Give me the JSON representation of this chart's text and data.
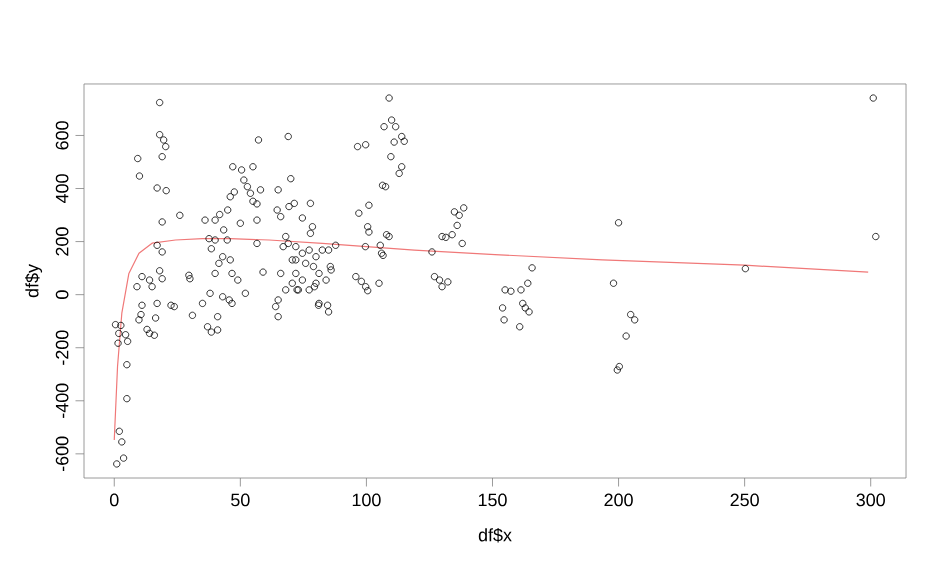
{
  "chart_data": {
    "type": "scatter",
    "xlabel": "df$x",
    "ylabel": "df$y",
    "xlim": [
      -12,
      314
    ],
    "ylim": [
      -691,
      794
    ],
    "xticks": [
      0,
      50,
      100,
      150,
      200,
      250,
      300
    ],
    "yticks": [
      -600,
      -400,
      -200,
      0,
      200,
      400,
      600
    ],
    "grid": false,
    "series": [
      {
        "color": "#000000",
        "marker": "circle",
        "x": [
          0.5,
          2.6,
          1.8,
          1.5,
          4.5,
          5.3,
          5,
          5,
          2,
          3,
          3.7,
          1,
          9.3,
          10,
          9,
          11,
          11,
          10.6,
          9.8,
          14,
          15,
          13,
          14,
          15.9,
          16.4,
          17,
          18,
          19,
          17,
          18,
          18,
          19.6,
          20.4,
          19,
          17,
          20.6,
          19,
          19,
          22.5,
          23.8,
          26,
          29.6,
          30,
          31,
          35,
          36,
          37.6,
          40,
          38.5,
          38,
          37,
          38.5,
          41,
          41,
          43,
          45.6,
          46.7,
          40,
          41.8,
          43.4,
          44.8,
          45,
          43,
          41.5,
          46,
          40,
          46.7,
          46,
          47.6,
          47,
          50.5,
          51.4,
          52.8,
          54,
          55,
          56.6,
          55,
          57.2,
          56.6,
          56.6,
          59,
          58,
          50,
          49,
          52,
          65,
          64,
          65,
          64.6,
          66,
          65,
          69,
          70,
          71.4,
          67,
          69,
          66,
          68,
          72,
          72.5,
          70.6,
          77.8,
          78.6,
          80,
          81,
          74.6,
          77.8,
          69.3,
          68,
          72,
          74.6,
          70.6,
          77.3,
          80,
          82.5,
          85,
          87.8,
          79,
          81.2,
          84,
          72,
          74.6,
          73,
          77.3,
          79.4,
          75.9,
          85.7,
          81.2,
          84.6,
          85,
          86,
          96.5,
          99.7,
          109,
          107,
          110,
          111.6,
          114,
          115,
          111,
          109.7,
          114,
          113,
          106.4,
          107.6,
          101,
          97,
          100.5,
          101,
          108,
          109,
          99.6,
          105.5,
          106,
          106.6,
          95.8,
          98,
          99.7,
          100.5,
          105,
          126,
          127,
          129,
          130,
          132.3,
          131.5,
          134,
          130,
          134.9,
          136.8,
          138.6,
          136,
          138,
          155,
          157.3,
          161.3,
          154,
          154.6,
          162,
          163,
          164.5,
          160.8,
          164,
          165.7,
          200,
          198,
          204.8,
          206.4,
          203,
          200.3,
          199.5,
          250.3,
          301,
          302
        ],
        "values": [
          -113,
          -116,
          -146,
          -183,
          -151,
          -176,
          -264,
          -392,
          -515,
          -555,
          -616,
          -638,
          513,
          447,
          30,
          68,
          -40,
          -75,
          -95,
          55,
          30,
          -131,
          -146,
          -153,
          -88,
          -33,
          90,
          60,
          186,
          724,
          603,
          583,
          558,
          520,
          402,
          392,
          274,
          161,
          -40,
          -45,
          299,
          73,
          60,
          -78,
          -33,
          281,
          211,
          206,
          173,
          5,
          -121,
          -141,
          -133,
          -83,
          -8,
          -20,
          -33,
          281,
          302,
          244,
          206,
          319,
          143,
          118,
          131,
          80,
          80,
          369,
          387,
          482,
          470,
          432,
          407,
          382,
          352,
          342,
          482,
          583,
          281,
          193,
          85,
          395,
          269,
          55,
          5,
          -20,
          -45,
          -83,
          319,
          294,
          395,
          596,
          437,
          344,
          181,
          193,
          80,
          18,
          131,
          18,
          43,
          344,
          256,
          43,
          -40,
          289,
          231,
          332,
          219,
          181,
          156,
          131,
          168,
          143,
          168,
          168,
          186,
          106,
          80,
          55,
          80,
          55,
          18,
          18,
          30,
          118,
          106,
          -33,
          -40,
          -65,
          93,
          558,
          565,
          741,
          633,
          658,
          633,
          596,
          578,
          575,
          520,
          482,
          457,
          412,
          407,
          337,
          307,
          256,
          236,
          226,
          219,
          181,
          186,
          156,
          148,
          68,
          50,
          30,
          15,
          43,
          161,
          68,
          55,
          30,
          48,
          216,
          226,
          219,
          312,
          299,
          327,
          261,
          193,
          18,
          13,
          18,
          -50,
          -95,
          -33,
          -50,
          -65,
          -121,
          43,
          101,
          271,
          43,
          -75,
          -95,
          -156,
          -271,
          -284,
          98,
          741,
          219
        ]
      },
      {
        "type": "line",
        "color": "#f07878",
        "marker": "none",
        "line_style": "solid",
        "x": [
          0,
          1.3,
          3,
          5.8,
          9.8,
          15,
          24.3,
          35,
          46,
          61.4,
          82.5,
          119,
          151,
          193.5,
          250,
          299
        ],
        "values": [
          -548,
          -271,
          -70,
          80,
          156,
          194,
          206,
          211,
          211,
          206,
          193,
          168,
          151,
          131,
          111,
          85
        ]
      }
    ]
  }
}
